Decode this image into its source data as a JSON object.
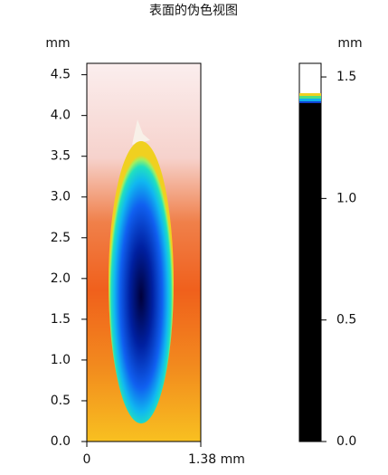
{
  "chart_data": {
    "type": "heatmap",
    "title": "表面的伪色视图",
    "ylabel": "mm",
    "colorbar_label": "mm",
    "xlim": [
      0,
      1.38
    ],
    "xticks": [
      0,
      {
        "value": 1.38,
        "label": "1.38 mm"
      }
    ],
    "ylim": [
      0,
      4.64
    ],
    "yticks": [
      {
        "value": 0,
        "label": "0.0"
      },
      0.5,
      {
        "value": 1,
        "label": "1.0"
      },
      1.5,
      {
        "value": 2,
        "label": "2.0"
      },
      2.5,
      {
        "value": 3,
        "label": "3.0"
      },
      3.5,
      {
        "value": 4,
        "label": "4.0"
      },
      4.5
    ],
    "colorbar_lim": [
      0,
      1.556
    ],
    "colorbar_ticks": [
      {
        "value": 0,
        "label": "0.0"
      },
      0.5,
      {
        "value": 1,
        "label": "1.0"
      },
      1.5
    ]
  }
}
